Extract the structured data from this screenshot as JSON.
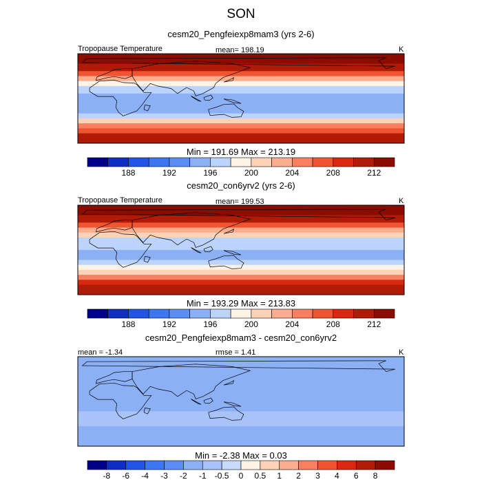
{
  "figure": {
    "title": "SON"
  },
  "colors": {
    "top_scale": [
      "#00008b",
      "#0f2fc0",
      "#2255e6",
      "#3d77f0",
      "#5b8ef2",
      "#8cb0f6",
      "#bcd3fb",
      "#fff3e6",
      "#fdd2b6",
      "#fbad8f",
      "#f88060",
      "#ef5530",
      "#d8280f",
      "#b01b08",
      "#8a0d00"
    ],
    "diff_scale": [
      "#00008b",
      "#0f2fc0",
      "#2255e6",
      "#3d77f0",
      "#5b8ef2",
      "#8cb0f6",
      "#a8c3f8",
      "#c8dbfc",
      "#fff3e6",
      "#fdd2b6",
      "#fbad8f",
      "#f88060",
      "#ef5530",
      "#d8280f",
      "#b01b08",
      "#8a0d00"
    ]
  },
  "panels": [
    {
      "subtitle": "cesm20_Pengfeiexp8mam3 (yrs 2-6)",
      "left_label": "Tropopause Temperature",
      "center_label": "mean= 198.19",
      "right_label": "K",
      "minmax": "Min = 191.69 Max = 213.19"
    },
    {
      "subtitle": "cesm20_con6yrv2 (yrs 2-6)",
      "left_label": "Tropopause Temperature",
      "center_label": "mean= 199.53",
      "right_label": "K",
      "minmax": "Min = 193.29 Max = 213.83"
    },
    {
      "subtitle": "cesm20_Pengfeiexp8mam3 - cesm20_con6yrv2",
      "left_label": "mean =  -1.34",
      "center_label": "rmse =   1.41",
      "right_label": "K",
      "minmax": "Min =  -2.38 Max =   0.03"
    }
  ],
  "chart_data": [
    {
      "type": "heatmap",
      "title": "cesm20_Pengfeiexp8mam3 (yrs 2-6)",
      "variable": "Tropopause Temperature",
      "units": "K",
      "mean": 198.19,
      "min": 191.69,
      "max": 213.19,
      "colorbar_levels": [
        186,
        188,
        190,
        192,
        194,
        196,
        198,
        200,
        202,
        204,
        206,
        208,
        210,
        212
      ],
      "colorbar_tick_labels": [
        "188",
        "192",
        "196",
        "200",
        "204",
        "208",
        "212"
      ],
      "colorbar_tick_values": [
        188,
        192,
        196,
        200,
        204,
        208,
        212
      ],
      "bands": [
        {
          "lat": 90,
          "value": 213
        },
        {
          "lat": 70,
          "value": 210
        },
        {
          "lat": 55,
          "value": 206
        },
        {
          "lat": 45,
          "value": 202
        },
        {
          "lat": 35,
          "value": 199
        },
        {
          "lat": 25,
          "value": 196
        },
        {
          "lat": 10,
          "value": 195
        },
        {
          "lat": 0,
          "value": 194
        },
        {
          "lat": -10,
          "value": 194
        },
        {
          "lat": -20,
          "value": 195
        },
        {
          "lat": -30,
          "value": 197
        },
        {
          "lat": -40,
          "value": 200
        },
        {
          "lat": -50,
          "value": 204
        },
        {
          "lat": -60,
          "value": 207
        },
        {
          "lat": -70,
          "value": 210
        },
        {
          "lat": -90,
          "value": 212
        }
      ]
    },
    {
      "type": "heatmap",
      "title": "cesm20_con6yrv2 (yrs 2-6)",
      "variable": "Tropopause Temperature",
      "units": "K",
      "mean": 199.53,
      "min": 193.29,
      "max": 213.83,
      "colorbar_levels": [
        186,
        188,
        190,
        192,
        194,
        196,
        198,
        200,
        202,
        204,
        206,
        208,
        210,
        212
      ],
      "colorbar_tick_labels": [
        "188",
        "192",
        "196",
        "200",
        "204",
        "208",
        "212"
      ],
      "colorbar_tick_values": [
        188,
        192,
        196,
        200,
        204,
        208,
        212
      ],
      "bands": [
        {
          "lat": 90,
          "value": 213
        },
        {
          "lat": 70,
          "value": 211
        },
        {
          "lat": 55,
          "value": 207
        },
        {
          "lat": 45,
          "value": 203
        },
        {
          "lat": 35,
          "value": 200
        },
        {
          "lat": 25,
          "value": 197
        },
        {
          "lat": 10,
          "value": 196
        },
        {
          "lat": 0,
          "value": 195
        },
        {
          "lat": -10,
          "value": 195
        },
        {
          "lat": -20,
          "value": 196
        },
        {
          "lat": -30,
          "value": 198
        },
        {
          "lat": -40,
          "value": 201
        },
        {
          "lat": -50,
          "value": 205
        },
        {
          "lat": -60,
          "value": 208
        },
        {
          "lat": -70,
          "value": 211
        },
        {
          "lat": -90,
          "value": 213
        }
      ]
    },
    {
      "type": "heatmap",
      "title": "cesm20_Pengfeiexp8mam3 - cesm20_con6yrv2",
      "units": "K",
      "mean": -1.34,
      "rmse": 1.41,
      "min": -2.38,
      "max": 0.03,
      "colorbar_levels": [
        -8,
        -6,
        -4,
        -3,
        -2,
        -1,
        -0.5,
        0,
        0.5,
        1,
        2,
        3,
        4,
        6,
        8
      ],
      "colorbar_tick_labels": [
        "-8",
        "-6",
        "-4",
        "-3",
        "-2",
        "-1",
        "-0.5",
        "0",
        "0.5",
        "1",
        "2",
        "3",
        "4",
        "6",
        "8"
      ],
      "colorbar_tick_values": [
        -8,
        -6,
        -4,
        -3,
        -2,
        -1,
        -0.5,
        0,
        0.5,
        1,
        2,
        3,
        4,
        6,
        8
      ],
      "bands": [
        {
          "lat": 90,
          "value": -1.2
        },
        {
          "lat": 60,
          "value": -1.5
        },
        {
          "lat": 30,
          "value": -1.4
        },
        {
          "lat": 10,
          "value": -1.6
        },
        {
          "lat": 0,
          "value": -1.5
        },
        {
          "lat": -20,
          "value": -0.8
        },
        {
          "lat": -35,
          "value": -0.7
        },
        {
          "lat": -50,
          "value": -1.5
        },
        {
          "lat": -90,
          "value": -1.3
        }
      ]
    }
  ]
}
